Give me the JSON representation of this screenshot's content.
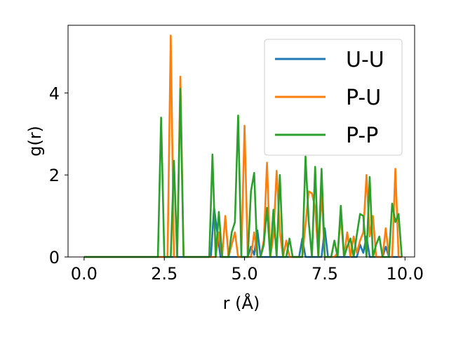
{
  "chart_data": {
    "type": "line",
    "title": "",
    "xlabel": "r (Å)",
    "ylabel": "g(r)",
    "xlim": [
      -0.5,
      10.3
    ],
    "ylim": [
      0,
      5.65
    ],
    "xticks": [
      0.0,
      2.5,
      5.0,
      7.5,
      10.0
    ],
    "xtick_labels": [
      "0.0",
      "2.5",
      "5.0",
      "7.5",
      "10.0"
    ],
    "yticks": [
      0,
      2,
      4
    ],
    "ytick_labels": [
      "0",
      "2",
      "4"
    ],
    "grid": false,
    "legend_position": "top-right",
    "series": [
      {
        "name": "U-U",
        "color": "#1f77b4",
        "x": [
          0.0,
          3.85,
          3.95,
          4.05,
          4.15,
          4.25,
          4.35,
          5.1,
          5.2,
          5.3,
          5.4,
          5.5,
          6.7,
          6.8,
          6.9,
          7.4,
          7.5,
          7.6,
          8.5,
          8.6,
          8.7,
          8.8,
          8.9,
          9.3,
          9.4,
          9.5,
          9.9
        ],
        "values": [
          0,
          0,
          0,
          1.2,
          0.6,
          0,
          0,
          0,
          0.25,
          0.05,
          0.65,
          0,
          0,
          0.45,
          0,
          0,
          0.7,
          0,
          0,
          0.3,
          0.1,
          0.5,
          0,
          0,
          0.25,
          0,
          0
        ]
      },
      {
        "name": "P-U",
        "color": "#ff7f0e",
        "x": [
          0.0,
          2.6,
          2.7,
          2.8,
          2.9,
          3.0,
          3.1,
          3.2,
          4.0,
          4.1,
          4.2,
          4.3,
          4.4,
          4.5,
          4.6,
          4.7,
          4.8,
          4.9,
          5.0,
          5.1,
          5.2,
          5.3,
          5.4,
          5.5,
          5.6,
          5.7,
          5.8,
          5.9,
          6.0,
          6.1,
          6.2,
          6.3,
          6.4,
          6.5,
          6.6,
          6.7,
          6.8,
          6.9,
          7.0,
          7.1,
          7.2,
          7.3,
          7.4,
          7.5,
          7.6,
          7.7,
          7.8,
          7.9,
          8.0,
          8.1,
          8.2,
          8.3,
          8.4,
          8.5,
          8.6,
          8.7,
          8.8,
          8.9,
          9.0,
          9.1,
          9.2,
          9.3,
          9.4,
          9.5,
          9.6,
          9.7,
          9.8,
          9.9
        ],
        "values": [
          0,
          0,
          5.4,
          0,
          0,
          4.4,
          0,
          0,
          0,
          0,
          0.6,
          0,
          1.0,
          0,
          0.3,
          0.6,
          0,
          0,
          3.2,
          0,
          0,
          0.6,
          0,
          0,
          0.4,
          2.3,
          0,
          0.5,
          2.1,
          0.6,
          0,
          0.4,
          0,
          0,
          0,
          0,
          0,
          0.8,
          1.6,
          1.55,
          1.2,
          0,
          1.6,
          0,
          0,
          0,
          0,
          0.1,
          1.0,
          0,
          0.6,
          0,
          0.5,
          0.1,
          0.4,
          0.6,
          2.0,
          0.5,
          1.0,
          0,
          0,
          0,
          0.7,
          0,
          0,
          2.15,
          0,
          0
        ]
      },
      {
        "name": "P-P",
        "color": "#2ca02c",
        "x": [
          0.0,
          2.3,
          2.4,
          2.5,
          2.6,
          2.7,
          2.8,
          2.9,
          3.0,
          3.1,
          3.2,
          3.8,
          3.9,
          4.0,
          4.1,
          4.2,
          4.3,
          4.4,
          4.5,
          4.6,
          4.7,
          4.8,
          4.9,
          5.0,
          5.1,
          5.2,
          5.3,
          5.4,
          5.5,
          5.6,
          5.7,
          5.8,
          5.9,
          6.0,
          6.1,
          6.2,
          6.3,
          6.4,
          6.5,
          6.6,
          6.7,
          6.8,
          6.9,
          7.0,
          7.1,
          7.2,
          7.3,
          7.4,
          7.5,
          7.6,
          7.7,
          7.8,
          7.9,
          8.0,
          8.1,
          8.2,
          8.3,
          8.4,
          8.5,
          8.6,
          8.7,
          8.8,
          8.9,
          9.0,
          9.1,
          9.2,
          9.3,
          9.4,
          9.5,
          9.6,
          9.7,
          9.8,
          9.9
        ],
        "values": [
          0,
          0,
          3.4,
          0,
          0,
          0,
          2.35,
          0,
          4.1,
          0,
          0,
          0,
          0,
          2.5,
          0,
          1.1,
          0,
          0,
          0,
          0.6,
          0.85,
          3.45,
          0,
          0,
          0,
          1.6,
          2.05,
          0,
          0,
          0.3,
          1.2,
          0,
          1.15,
          0,
          2.0,
          0,
          0,
          0.45,
          0,
          0,
          0,
          0,
          2.45,
          0.85,
          0,
          2.2,
          0,
          2.15,
          0,
          0,
          0,
          0.4,
          0,
          1.25,
          0,
          0.25,
          0.45,
          0,
          0.55,
          1.05,
          1.0,
          0,
          1.95,
          0,
          0.3,
          0.5,
          0,
          0,
          0,
          1.3,
          0.85,
          1.05,
          0
        ]
      }
    ]
  }
}
